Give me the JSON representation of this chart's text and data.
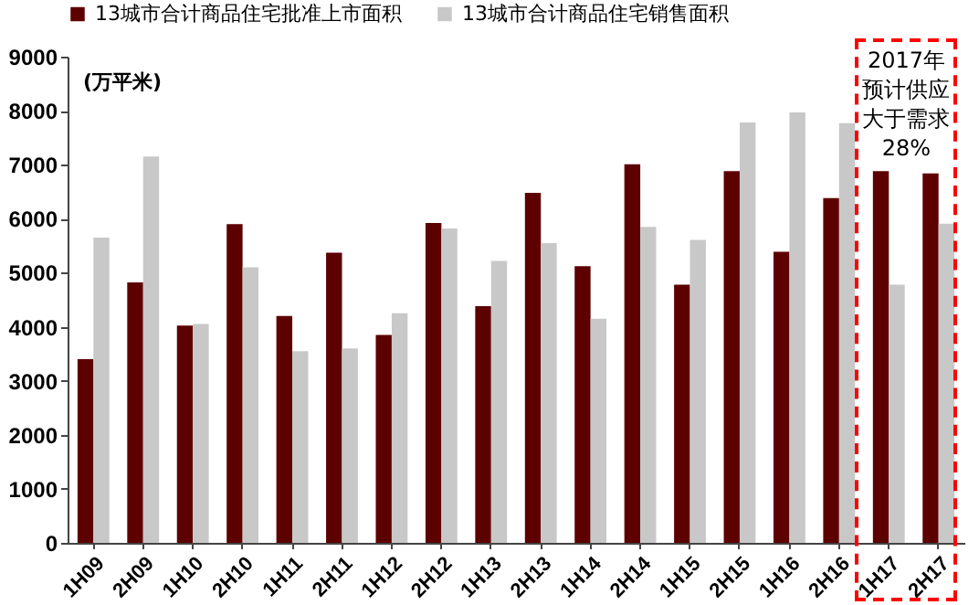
{
  "chart_data": {
    "type": "bar",
    "ylabel": "(万平米)",
    "categories": [
      "1H09",
      "2H09",
      "1H10",
      "2H10",
      "1H11",
      "2H11",
      "1H12",
      "2H12",
      "1H13",
      "2H13",
      "1H14",
      "2H14",
      "1H15",
      "2H15",
      "1H16",
      "2H16",
      "1H17",
      "2H17"
    ],
    "series": [
      {
        "name": "13城市合计商品住宅批准上市面积",
        "color": "#5c0000",
        "values": [
          3400,
          4820,
          4020,
          5900,
          4200,
          5370,
          3850,
          5920,
          4380,
          6480,
          5120,
          7010,
          4780,
          6880,
          5390,
          6380,
          6880,
          6840
        ]
      },
      {
        "name": "13城市合计商品住宅销售面积",
        "color": "#c8c8c8",
        "values": [
          5650,
          7150,
          4050,
          5100,
          3550,
          3600,
          4250,
          5820,
          5220,
          5550,
          4150,
          5850,
          5610,
          7780,
          7970,
          7770,
          4780,
          5910
        ]
      }
    ],
    "ylim": [
      0,
      9000
    ],
    "yticks": [
      0,
      1000,
      2000,
      3000,
      4000,
      5000,
      6000,
      7000,
      8000,
      9000
    ],
    "grid": false,
    "legend": "top",
    "annotations": [
      "2017年预计供应大于需求28%"
    ]
  }
}
